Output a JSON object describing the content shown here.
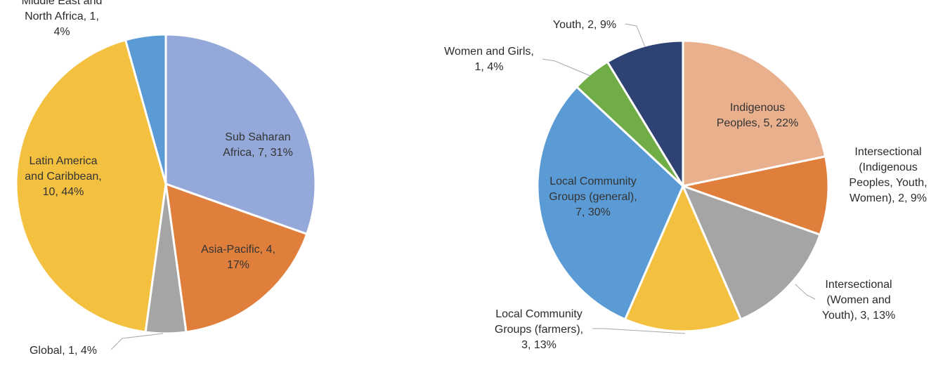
{
  "chart_data": [
    {
      "type": "pie",
      "title": "",
      "slices": [
        {
          "label": "Sub Saharan Africa",
          "value": 7,
          "percent": "31%",
          "color": "#94a9d9",
          "text": [
            "Sub Saharan",
            "Africa, 7, 31%"
          ]
        },
        {
          "label": "Asia-Pacific",
          "value": 4,
          "percent": "17%",
          "color": "#e07f3c",
          "text": [
            "Asia-Pacific, 4,",
            "17%"
          ]
        },
        {
          "label": "Global",
          "value": 1,
          "percent": "4%",
          "color": "#a5a5a5",
          "text": [
            "Global, 1, 4%"
          ]
        },
        {
          "label": "Latin America and Caribbean",
          "value": 10,
          "percent": "44%",
          "color": "#f4c03f",
          "text": [
            "Latin America",
            "and Caribbean,",
            "10, 44%"
          ]
        },
        {
          "label": "Middle East and North Africa",
          "value": 1,
          "percent": "4%",
          "color": "#5b9bd5",
          "text": [
            "Middle East and",
            "North Africa, 1,",
            "4%"
          ]
        }
      ]
    },
    {
      "type": "pie",
      "title": "",
      "slices": [
        {
          "label": "Indigenous Peoples",
          "value": 5,
          "percent": "22%",
          "color": "#e9b08d",
          "text": [
            "Indigenous",
            "Peoples, 5, 22%"
          ]
        },
        {
          "label": "Intersectional (Indigenous Peoples, Youth, Women)",
          "value": 2,
          "percent": "9%",
          "color": "#e07f3c",
          "text": [
            "Intersectional",
            "(Indigenous",
            "Peoples, Youth,",
            "Women), 2, 9%"
          ]
        },
        {
          "label": "Intersectional (Women and Youth)",
          "value": 3,
          "percent": "13%",
          "color": "#a5a5a5",
          "text": [
            "Intersectional",
            "(Women and",
            "Youth), 3, 13%"
          ]
        },
        {
          "label": "Local Community Groups (farmers)",
          "value": 3,
          "percent": "13%",
          "color": "#f4c03f",
          "text": [
            "Local Community",
            "Groups (farmers),",
            "3, 13%"
          ]
        },
        {
          "label": "Local Community Groups (general)",
          "value": 7,
          "percent": "30%",
          "color": "#5b9bd5",
          "text": [
            "Local Community",
            "Groups (general),",
            "7, 30%"
          ]
        },
        {
          "label": "Women and Girls",
          "value": 1,
          "percent": "4%",
          "color": "#70ad47",
          "text": [
            "Women and Girls,",
            "1, 4%"
          ]
        },
        {
          "label": "Youth",
          "value": 2,
          "percent": "9%",
          "color": "#2e4374",
          "text": [
            "Youth, 2, 9%"
          ]
        }
      ]
    }
  ]
}
